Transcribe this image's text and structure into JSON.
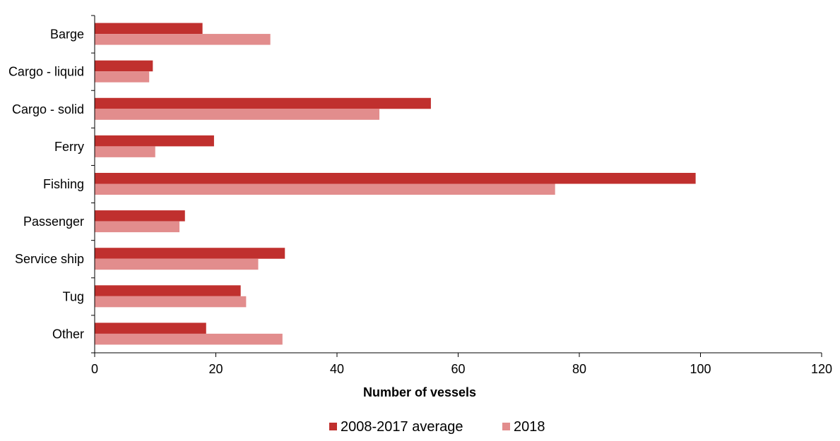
{
  "chart_data": {
    "type": "bar",
    "orientation": "horizontal",
    "categories": [
      "Barge",
      "Cargo - liquid",
      "Cargo - solid",
      "Ferry",
      "Fishing",
      "Passenger",
      "Service ship",
      "Tug",
      "Other"
    ],
    "series": [
      {
        "name": "2008-2017 average",
        "color": "#c0302e",
        "values": [
          17.8,
          9.6,
          55.5,
          19.7,
          99.2,
          14.9,
          31.4,
          24.1,
          18.4
        ]
      },
      {
        "name": "2018",
        "color": "#e28d8d",
        "values": [
          29,
          9,
          47,
          10,
          76,
          14,
          27,
          25,
          31
        ]
      }
    ],
    "xlabel": "Number of vessels",
    "ylabel": "",
    "xlim": [
      0,
      120
    ],
    "x_ticks": [
      0,
      20,
      40,
      60,
      80,
      100,
      120
    ],
    "grid": false,
    "legend_position": "bottom"
  }
}
